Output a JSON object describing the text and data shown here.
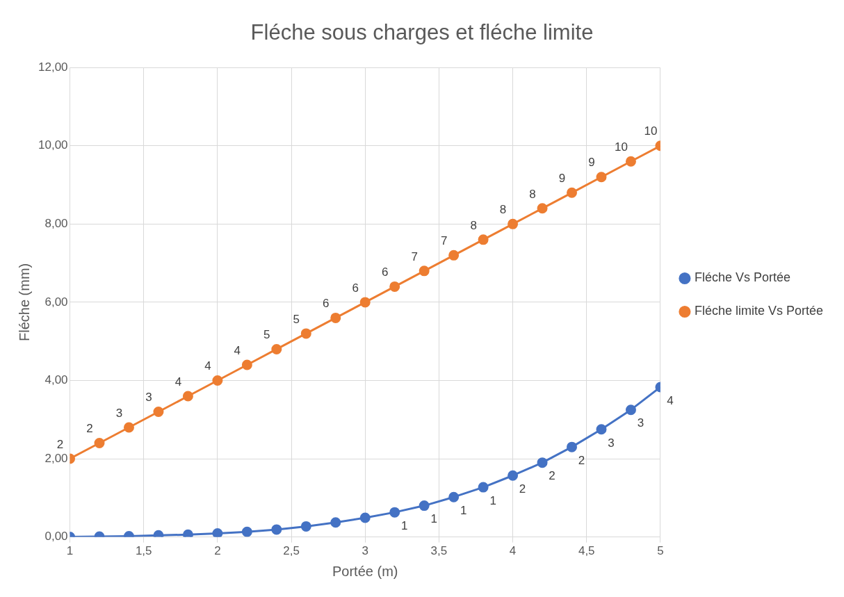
{
  "chart_data": {
    "type": "line",
    "title": "Fléche sous charges et fléche limite",
    "xlabel": "Portée (m)",
    "ylabel": "Fléche (mm)",
    "x": [
      1,
      1.2,
      1.4,
      1.6,
      1.8,
      2,
      2.2,
      2.4,
      2.6,
      2.8,
      3,
      3.2,
      3.4,
      3.6,
      3.8,
      4,
      4.2,
      4.4,
      4.6,
      4.8,
      5
    ],
    "series": [
      {
        "name": "Fléche Vs Portée",
        "color": "#4472c4",
        "values": [
          0,
          0.01,
          0.02,
          0.04,
          0.06,
          0.09,
          0.13,
          0.19,
          0.27,
          0.37,
          0.49,
          0.63,
          0.8,
          1.02,
          1.27,
          1.57,
          1.9,
          2.3,
          2.75,
          3.25,
          3.83
        ],
        "value_labels": [
          null,
          null,
          null,
          null,
          null,
          null,
          null,
          null,
          null,
          null,
          null,
          "1",
          "1",
          "1",
          "1",
          "2",
          "2",
          "2",
          "3",
          "3",
          "4"
        ]
      },
      {
        "name": "Fléche limite Vs Portée",
        "color": "#ed7d31",
        "values": [
          2,
          2.4,
          2.8,
          3.2,
          3.6,
          4,
          4.4,
          4.8,
          5.2,
          5.6,
          6,
          6.4,
          6.8,
          7.2,
          7.6,
          8,
          8.4,
          8.8,
          9.2,
          9.6,
          10
        ],
        "value_labels": [
          "2",
          "2",
          "3",
          "3",
          "4",
          "4",
          "4",
          "5",
          "5",
          "6",
          "6",
          "6",
          "7",
          "7",
          "8",
          "8",
          "8",
          "9",
          "9",
          "10",
          "10"
        ]
      }
    ],
    "xlim": [
      1,
      5
    ],
    "xticks": [
      1,
      {
        "value": 1.5,
        "label": "1,5"
      },
      2,
      {
        "value": 2.5,
        "label": "2,5"
      },
      3,
      {
        "value": 3.5,
        "label": "3,5"
      },
      4,
      {
        "value": 4.5,
        "label": "4,5"
      },
      5
    ],
    "ylim": [
      0,
      12
    ],
    "yticks": [
      {
        "value": 0,
        "label": "0,00"
      },
      {
        "value": 2,
        "label": "2,00"
      },
      {
        "value": 4,
        "label": "4,00"
      },
      {
        "value": 6,
        "label": "6,00"
      },
      {
        "value": 8,
        "label": "8,00"
      },
      {
        "value": 10,
        "label": "10,00"
      },
      {
        "value": 12,
        "label": "12,00"
      }
    ],
    "grid": true,
    "legend": "right",
    "marker": "circle",
    "line_style": "solid"
  }
}
